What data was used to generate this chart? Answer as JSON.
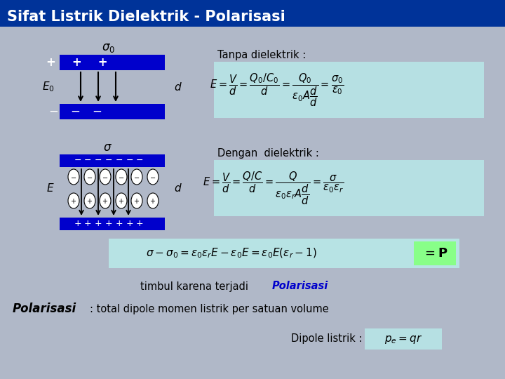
{
  "title": "Sifat Listrik Dielektrik - Polarisasi",
  "title_bg": "#003399",
  "title_color": "white",
  "bg_color": "#b0b8c8",
  "plate_blue": "#0000cc",
  "plate_text_color": "white",
  "formula_bg": "#b8e8e8",
  "formula_bg2": "#ccffcc",
  "tanpa_label": "Tanpa dielektrik :",
  "dengan_label": "Dengan  dielektrik :",
  "timbul_text": "timbul karena terjadi ",
  "polarisasi_text": "Polarisasi",
  "polarisasi_def": "Polarisasi",
  "def_text": ": total dipole momen listrik per satuan volume",
  "dipole_text": "Dipole listrik : ",
  "sigma0_label": "σ₀",
  "sigma_label": "σ",
  "E0_label": "E₀",
  "E_label": "E",
  "d_label": "d"
}
